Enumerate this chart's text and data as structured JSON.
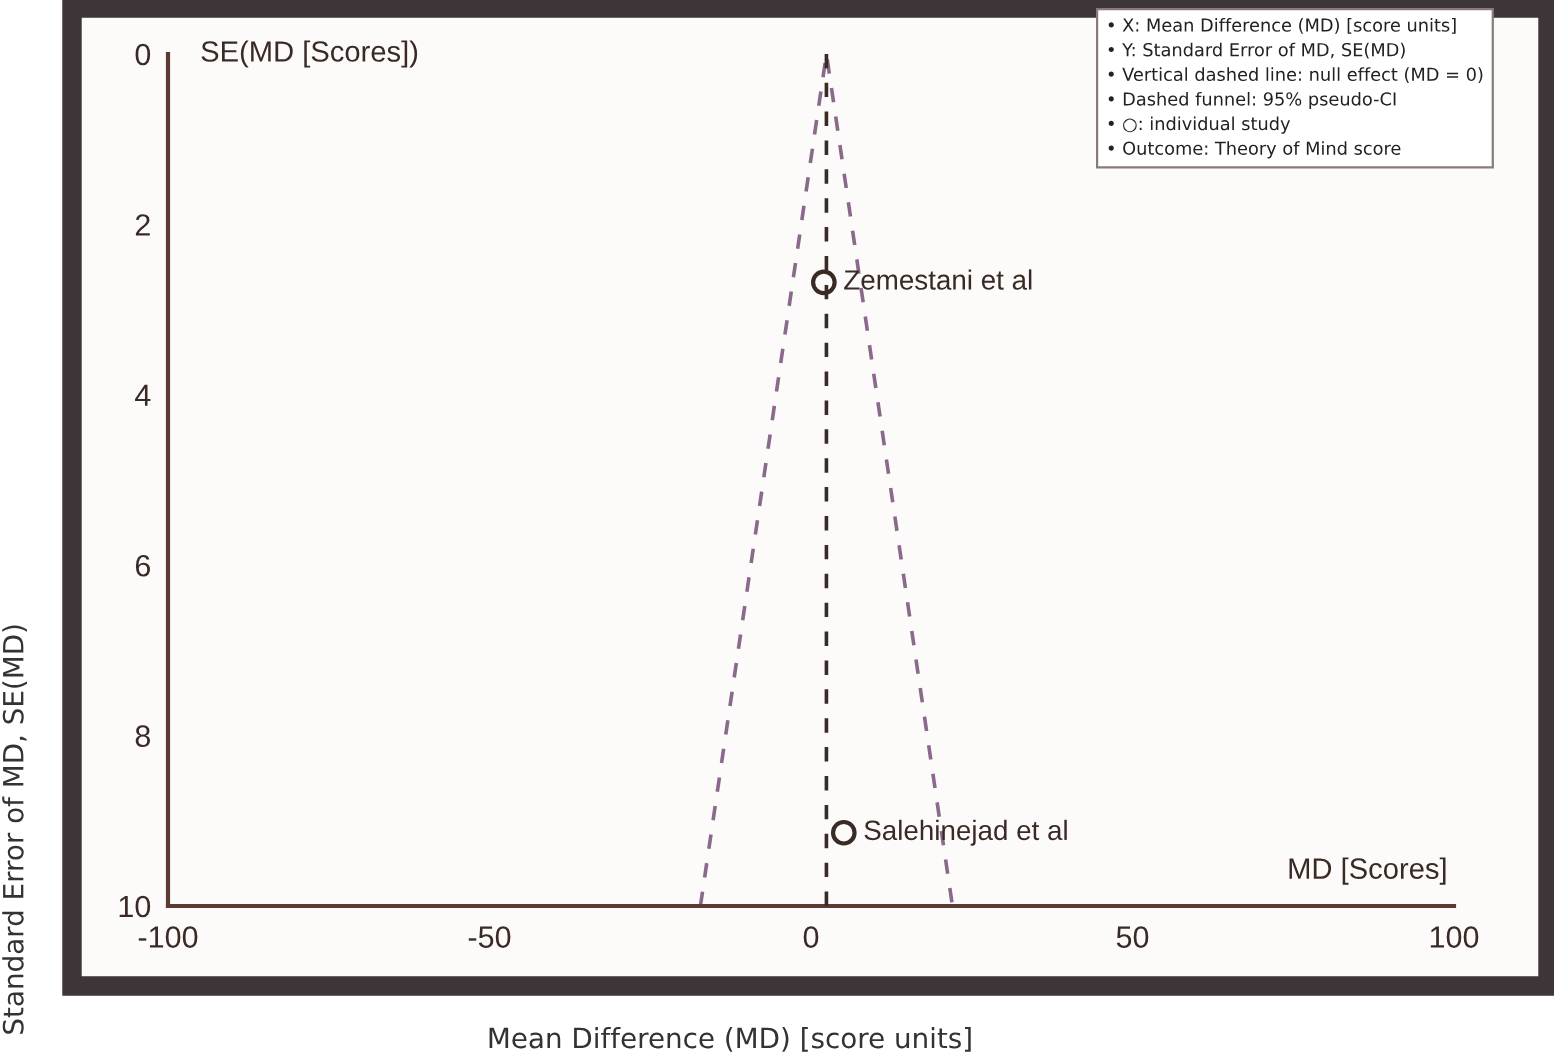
{
  "chart_data": {
    "type": "scatter",
    "xlabel": "Mean Difference (MD) [score units]",
    "ylabel": "Standard Error of MD, SE(MD)",
    "series": [
      {
        "type": "line",
        "color": "#8a6a8a",
        "x": [
          -17.2,
          2.4,
          22.0
        ],
        "values": [
          10,
          0,
          10
        ],
        "line_style": "dashed",
        "marker": "none"
      },
      {
        "color": "#3a2a26",
        "x": [
          2.0,
          5.1
        ],
        "values": [
          2.68,
          9.14
        ],
        "marker": "circle"
      }
    ],
    "ref_lines": [
      {
        "axis": "x",
        "value": 2.4,
        "color": "#3a2a26",
        "line_style": "dashed"
      }
    ],
    "annotations": [
      "SE(MD [Scores])",
      "MD [Scores]",
      {
        "text": "Zemestani et al",
        "x": 2.0,
        "y": 2.68
      },
      {
        "text": "Salehinejad et al",
        "x": 5.1,
        "y": 9.14
      },
      "• X: Mean Difference (MD) [score units]",
      "• Y: Standard Error of MD, SE(MD)",
      "• Vertical dashed line: null effect (MD = 0)",
      "• Dashed funnel: 95% pseudo-CI",
      "• ○: individual study",
      "• Outcome: Theory of Mind score"
    ],
    "xlim": [
      -100,
      100
    ],
    "ylim": [
      10,
      0
    ],
    "xticks": [
      -100,
      -50,
      0,
      50,
      100
    ],
    "yticks": [
      0,
      2,
      4,
      6,
      8,
      10
    ],
    "grid": false
  }
}
